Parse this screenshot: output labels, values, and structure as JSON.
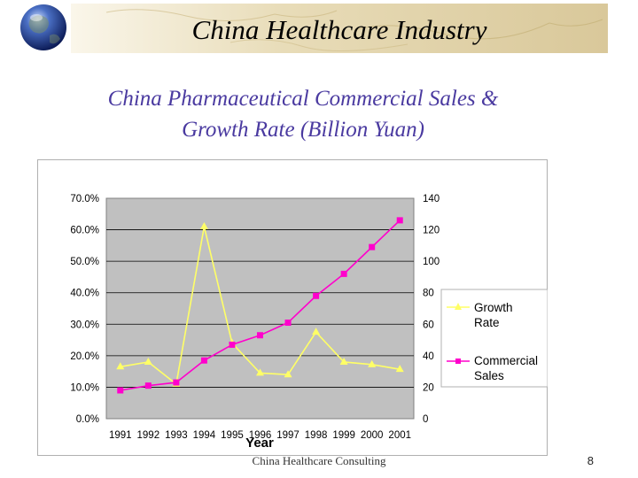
{
  "slide": {
    "title": "China Healthcare Industry",
    "subtitle_line1": "China Pharmaceutical Commercial Sales &",
    "subtitle_line2": "Growth Rate (Billion Yuan)",
    "footer": "China Healthcare Consulting",
    "page_number": "8"
  },
  "icons": {
    "logo": "globe-icon"
  },
  "colors": {
    "plot_background": "#c0c0c0",
    "growth_rate": "#ffff66",
    "commercial_sales": "#ff00cc"
  },
  "chart_data": {
    "type": "line",
    "xlabel": "Year",
    "x": [
      "1991",
      "1992",
      "1993",
      "1994",
      "1995",
      "1996",
      "1997",
      "1998",
      "1999",
      "2000",
      "2001"
    ],
    "series": [
      {
        "name": "Growth Rate",
        "axis": "left",
        "marker": "triangle",
        "values": [
          0.165,
          0.18,
          0.11,
          0.61,
          0.24,
          0.145,
          0.14,
          0.275,
          0.18,
          0.172,
          0.157
        ]
      },
      {
        "name": "Commercial Sales",
        "axis": "right",
        "marker": "square",
        "values": [
          18,
          21,
          23,
          37,
          47,
          53,
          61,
          78,
          92,
          109,
          126
        ]
      }
    ],
    "y_left": {
      "ticks": [
        "70.0%",
        "60.0%",
        "50.0%",
        "40.0%",
        "30.0%",
        "20.0%",
        "10.0%",
        "0.0%"
      ],
      "ylim": [
        0,
        0.7
      ]
    },
    "y_right": {
      "ticks": [
        "140",
        "120",
        "100",
        "80",
        "60",
        "40",
        "20",
        "0"
      ],
      "ylim": [
        0,
        140
      ]
    },
    "grid": true,
    "legend_position": "right"
  }
}
